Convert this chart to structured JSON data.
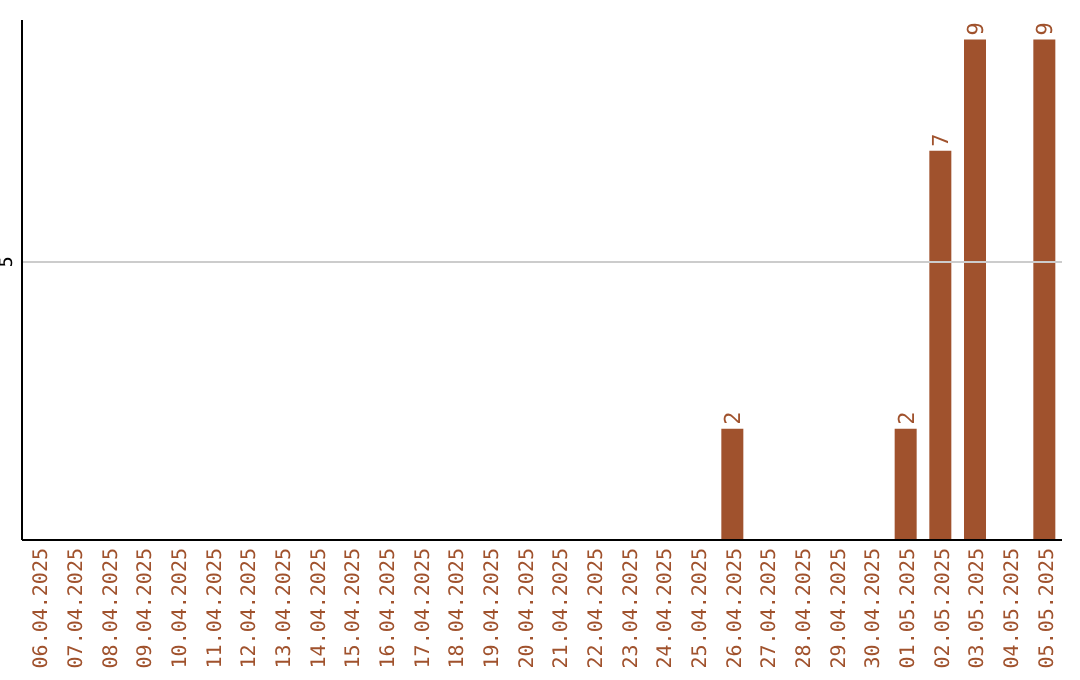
{
  "chart_data": {
    "type": "bar",
    "categories": [
      "06.04.2025",
      "07.04.2025",
      "08.04.2025",
      "09.04.2025",
      "10.04.2025",
      "11.04.2025",
      "12.04.2025",
      "13.04.2025",
      "14.04.2025",
      "15.04.2025",
      "16.04.2025",
      "17.04.2025",
      "18.04.2025",
      "19.04.2025",
      "20.04.2025",
      "21.04.2025",
      "22.04.2025",
      "23.04.2025",
      "24.04.2025",
      "25.04.2025",
      "26.04.2025",
      "27.04.2025",
      "28.04.2025",
      "29.04.2025",
      "30.04.2025",
      "01.05.2025",
      "02.05.2025",
      "03.05.2025",
      "04.05.2025",
      "05.05.2025"
    ],
    "values": [
      null,
      null,
      null,
      null,
      null,
      null,
      null,
      null,
      null,
      null,
      null,
      null,
      null,
      null,
      null,
      null,
      null,
      null,
      null,
      null,
      2,
      null,
      null,
      null,
      null,
      2,
      7,
      9,
      null,
      9
    ],
    "value_labels": [
      null,
      null,
      null,
      null,
      null,
      null,
      null,
      null,
      null,
      null,
      null,
      null,
      null,
      null,
      null,
      null,
      null,
      null,
      null,
      null,
      "2",
      null,
      null,
      null,
      null,
      "2",
      "7",
      "9",
      null,
      "9"
    ],
    "color": "#a0522d",
    "ylim": [
      0,
      9.35
    ],
    "ref_lines": [
      {
        "axis": "y",
        "value": 5,
        "label": "5",
        "color": "#cccccc"
      }
    ]
  }
}
